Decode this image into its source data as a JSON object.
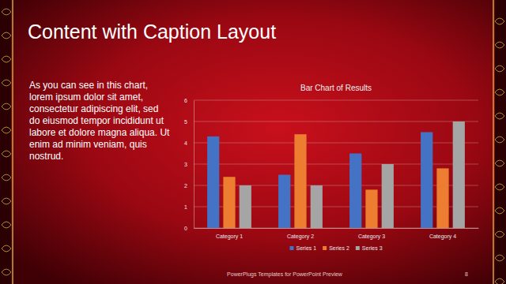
{
  "slide": {
    "title": "Content with Caption Layout",
    "caption": [
      "As you can see in this chart,",
      "lorem ipsum dolor sit amet,",
      "consectetur adipiscing elit, sed",
      "do eiusmod tempor incididunt ut",
      "labore et dolore magna aliqua. Ut",
      "enim ad minim veniam, quis",
      "nostrud."
    ],
    "footer": "PowerPlugs Templates for PowerPoint Preview",
    "page_number": "8"
  },
  "chart_data": {
    "type": "bar",
    "title": "Bar Chart of Results",
    "categories": [
      "Category 1",
      "Category 2",
      "Category 3",
      "Category 4"
    ],
    "series": [
      {
        "name": "Series 1",
        "color": "#4472c4",
        "values": [
          4.3,
          2.5,
          3.5,
          4.5
        ]
      },
      {
        "name": "Series 2",
        "color": "#ed7d31",
        "values": [
          2.4,
          4.4,
          1.8,
          2.8
        ]
      },
      {
        "name": "Series 3",
        "color": "#a5a5a5",
        "values": [
          2,
          2,
          3,
          5
        ]
      }
    ],
    "ylim": [
      0,
      6
    ],
    "yticks": [
      0,
      1,
      2,
      3,
      4,
      5,
      6
    ],
    "grid": true,
    "legend": "bottom"
  }
}
